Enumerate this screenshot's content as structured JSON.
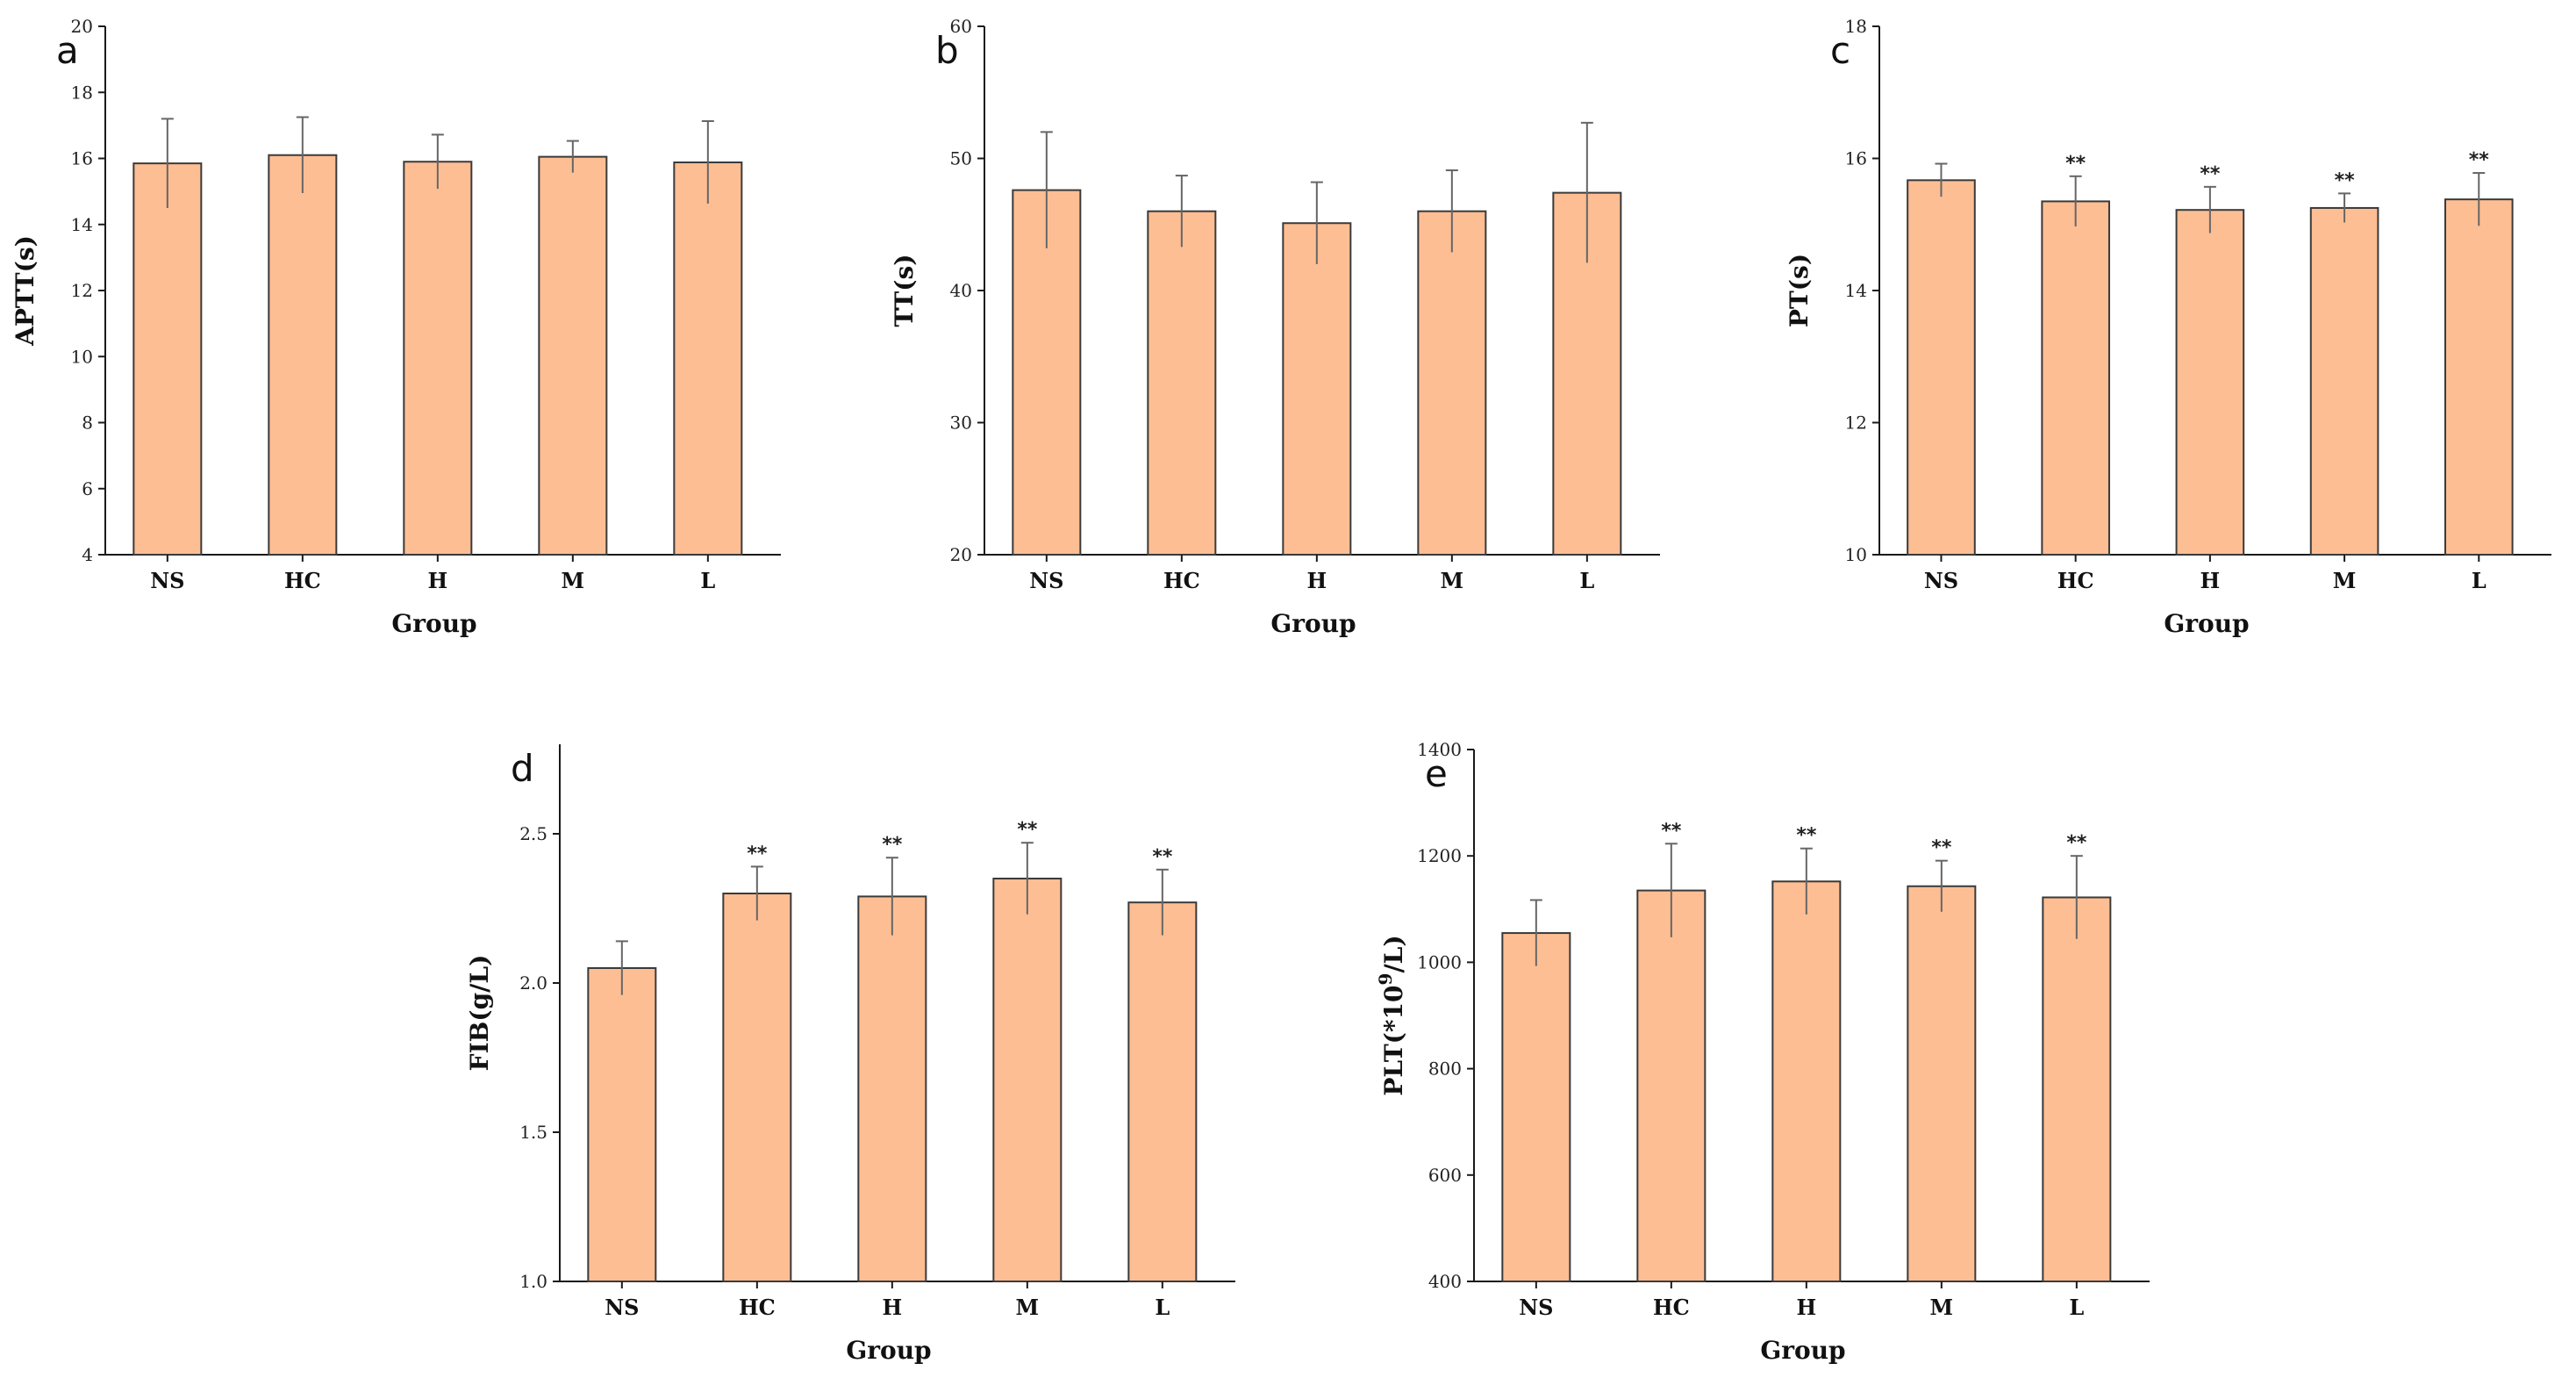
{
  "bar_color": "#FDBE93",
  "chart_data": [
    {
      "type": "bar",
      "panel": "a",
      "title": "",
      "xlabel": "Group",
      "ylabel": "APTT(s)",
      "ylim": [
        4,
        20
      ],
      "yticks": [
        4,
        6,
        8,
        10,
        12,
        14,
        16,
        18,
        20
      ],
      "ytick_labels": [
        "4",
        "6",
        "8",
        "10",
        "12",
        "14",
        "16",
        "18",
        "20"
      ],
      "categories": [
        "NS",
        "HC",
        "H",
        "M",
        "L"
      ],
      "values": [
        15.85,
        16.1,
        15.9,
        16.05,
        15.88
      ],
      "errors": [
        1.35,
        1.15,
        0.82,
        0.48,
        1.25
      ],
      "significance": [
        "",
        "",
        "",
        "",
        ""
      ]
    },
    {
      "type": "bar",
      "panel": "b",
      "title": "",
      "xlabel": "Group",
      "ylabel": "TT(s)",
      "ylim": [
        20,
        60
      ],
      "yticks": [
        20,
        30,
        40,
        50,
        60
      ],
      "ytick_labels": [
        "20",
        "30",
        "40",
        "50",
        "60"
      ],
      "categories": [
        "NS",
        "HC",
        "H",
        "M",
        "L"
      ],
      "values": [
        47.6,
        46.0,
        45.1,
        46.0,
        47.4
      ],
      "errors": [
        4.4,
        2.7,
        3.1,
        3.1,
        5.3
      ],
      "significance": [
        "",
        "",
        "",
        "",
        ""
      ]
    },
    {
      "type": "bar",
      "panel": "c",
      "title": "",
      "xlabel": "Group",
      "ylabel": "PT(s)",
      "ylim": [
        10,
        18
      ],
      "yticks": [
        10,
        12,
        14,
        16,
        18
      ],
      "ytick_labels": [
        "10",
        "12",
        "14",
        "16",
        "18"
      ],
      "categories": [
        "NS",
        "HC",
        "H",
        "M",
        "L"
      ],
      "values": [
        15.67,
        15.35,
        15.22,
        15.25,
        15.38
      ],
      "errors": [
        0.25,
        0.38,
        0.35,
        0.22,
        0.4
      ],
      "significance": [
        "",
        "**",
        "**",
        "**",
        "**"
      ]
    },
    {
      "type": "bar",
      "panel": "d",
      "title": "",
      "xlabel": "Group",
      "ylabel": "FIB(g/L)",
      "ylim": [
        1.0,
        2.8
      ],
      "yticks": [
        1.0,
        1.5,
        2.0,
        2.5
      ],
      "ytick_labels": [
        "1.0",
        "1.5",
        "2.0",
        "2.5"
      ],
      "categories": [
        "NS",
        "HC",
        "H",
        "M",
        "L"
      ],
      "values": [
        2.05,
        2.3,
        2.29,
        2.35,
        2.27
      ],
      "errors": [
        0.09,
        0.09,
        0.13,
        0.12,
        0.11
      ],
      "significance": [
        "",
        "**",
        "**",
        "**",
        "**"
      ]
    },
    {
      "type": "bar",
      "panel": "e",
      "title": "",
      "xlabel": "Group",
      "ylabel": "PLT(*10",
      "ylabel_sup": "9",
      "ylabel_tail": "/L)",
      "ylim": [
        400,
        1400
      ],
      "yticks": [
        400,
        600,
        800,
        1000,
        1200,
        1400
      ],
      "ytick_labels": [
        "400",
        "600",
        "800",
        "1000",
        "1200",
        "1400"
      ],
      "categories": [
        "NS",
        "HC",
        "H",
        "M",
        "L"
      ],
      "values": [
        1055,
        1135,
        1152,
        1143,
        1122
      ],
      "errors": [
        62,
        88,
        62,
        48,
        78
      ],
      "significance": [
        "",
        "**",
        "**",
        "**",
        "**"
      ]
    }
  ]
}
